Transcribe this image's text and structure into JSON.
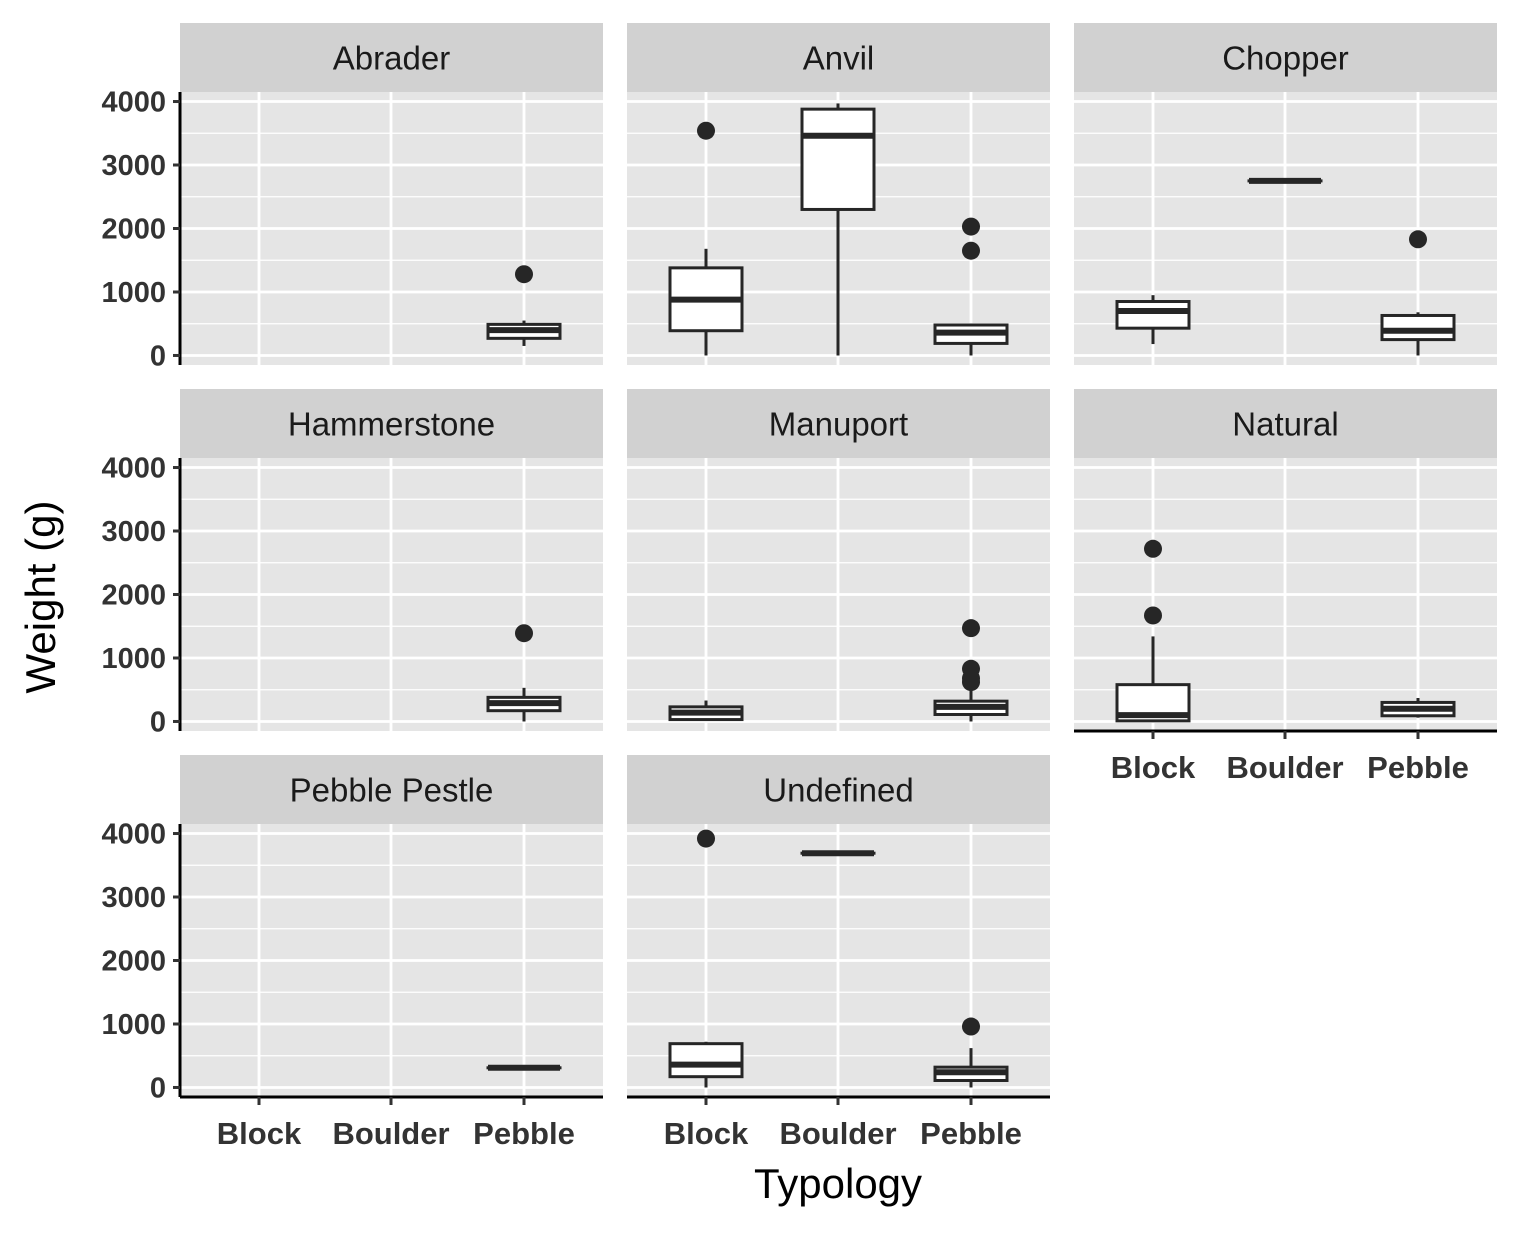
{
  "chart_data": {
    "type": "boxplot",
    "xlabel": "Typology",
    "ylabel": "Weight (g)",
    "categories": [
      "Block",
      "Boulder",
      "Pebble"
    ],
    "ylim": [
      -150,
      4150
    ],
    "yticks": [
      0,
      1000,
      2000,
      3000,
      4000
    ],
    "facet_layout": "wrap, 3 columns",
    "grid": true,
    "colors": {
      "panel_bg": "#e5e5e5",
      "grid": "#ffffff",
      "strip_bg": "#d1d1d1",
      "box_fill": "#ffffff",
      "box_line": "#262626",
      "outlier": "#262626"
    },
    "panels": [
      {
        "facet": "Abrader",
        "boxes": [
          {
            "category": "Pebble",
            "whisker_low": 150,
            "q1": 270,
            "median": 400,
            "q3": 490,
            "whisker_high": 550,
            "outliers": [
              1280
            ]
          }
        ]
      },
      {
        "facet": "Anvil",
        "boxes": [
          {
            "category": "Block",
            "whisker_low": 0,
            "q1": 390,
            "median": 880,
            "q3": 1380,
            "whisker_high": 1680,
            "outliers": [
              3540
            ]
          },
          {
            "category": "Boulder",
            "whisker_low": 0,
            "q1": 2300,
            "median": 3460,
            "q3": 3880,
            "whisker_high": 3970,
            "outliers": []
          },
          {
            "category": "Pebble",
            "whisker_low": 0,
            "q1": 190,
            "median": 360,
            "q3": 480,
            "whisker_high": 490,
            "outliers": [
              1650,
              2030
            ]
          }
        ]
      },
      {
        "facet": "Chopper",
        "boxes": [
          {
            "category": "Block",
            "whisker_low": 180,
            "q1": 430,
            "median": 700,
            "q3": 850,
            "whisker_high": 950,
            "outliers": []
          },
          {
            "category": "Boulder",
            "whisker_low": 2750,
            "q1": 2750,
            "median": 2750,
            "q3": 2750,
            "whisker_high": 2750,
            "outliers": []
          },
          {
            "category": "Pebble",
            "whisker_low": 0,
            "q1": 250,
            "median": 390,
            "q3": 630,
            "whisker_high": 680,
            "outliers": [
              1830
            ]
          }
        ]
      },
      {
        "facet": "Hammerstone",
        "boxes": [
          {
            "category": "Pebble",
            "whisker_low": 0,
            "q1": 170,
            "median": 290,
            "q3": 380,
            "whisker_high": 530,
            "outliers": [
              1390
            ]
          }
        ]
      },
      {
        "facet": "Manuport",
        "boxes": [
          {
            "category": "Block",
            "whisker_low": 20,
            "q1": 30,
            "median": 140,
            "q3": 230,
            "whisker_high": 330,
            "outliers": []
          },
          {
            "category": "Pebble",
            "whisker_low": 0,
            "q1": 110,
            "median": 230,
            "q3": 320,
            "whisker_high": 520,
            "outliers": [
              620,
              680,
              830,
              1470
            ]
          }
        ]
      },
      {
        "facet": "Natural",
        "boxes": [
          {
            "category": "Block",
            "whisker_low": 0,
            "q1": 10,
            "median": 100,
            "q3": 580,
            "whisker_high": 1340,
            "outliers": [
              1670,
              2720
            ]
          },
          {
            "category": "Pebble",
            "whisker_low": 60,
            "q1": 90,
            "median": 200,
            "q3": 300,
            "whisker_high": 370,
            "outliers": []
          }
        ]
      },
      {
        "facet": "Pebble Pestle",
        "boxes": [
          {
            "category": "Pebble",
            "whisker_low": 310,
            "q1": 310,
            "median": 310,
            "q3": 310,
            "whisker_high": 310,
            "outliers": []
          }
        ]
      },
      {
        "facet": "Undefined",
        "boxes": [
          {
            "category": "Block",
            "whisker_low": 0,
            "q1": 170,
            "median": 360,
            "q3": 690,
            "whisker_high": 720,
            "outliers": [
              3920
            ]
          },
          {
            "category": "Boulder",
            "whisker_low": 3690,
            "q1": 3690,
            "median": 3690,
            "q3": 3690,
            "whisker_high": 3690,
            "outliers": []
          },
          {
            "category": "Pebble",
            "whisker_low": 0,
            "q1": 110,
            "median": 240,
            "q3": 320,
            "whisker_high": 620,
            "outliers": [
              960
            ]
          }
        ]
      }
    ]
  }
}
